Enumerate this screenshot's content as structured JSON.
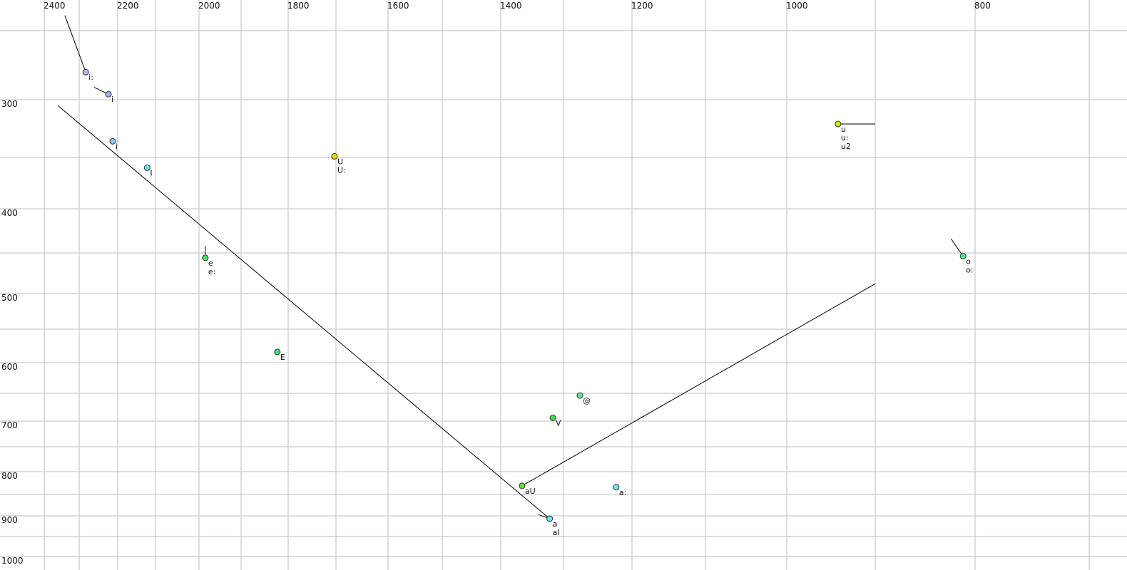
{
  "chart_data": {
    "type": "scatter",
    "title": "",
    "xlabel": "",
    "ylabel": "",
    "x_axis": {
      "reversed": true,
      "scale": "nonlinear",
      "range": [
        2400,
        700
      ],
      "tick_labels": [
        2400,
        2200,
        2000,
        1800,
        1600,
        1400,
        1200,
        1000,
        800
      ],
      "grid_values": [
        2400,
        2300,
        2200,
        2100,
        2000,
        1900,
        1800,
        1700,
        1600,
        1500,
        1400,
        1300,
        1200,
        1100,
        1000,
        900,
        800,
        700
      ],
      "position": "top"
    },
    "y_axis": {
      "reversed": false,
      "scale": "nonlinear",
      "range": [
        250,
        1000
      ],
      "tick_labels": [
        300,
        400,
        500,
        600,
        700,
        800,
        900,
        1000
      ],
      "grid_values": [
        250,
        300,
        350,
        400,
        450,
        500,
        550,
        600,
        650,
        700,
        750,
        800,
        850,
        900,
        950,
        1000
      ],
      "position": "left"
    },
    "grid": true,
    "points": [
      {
        "labels": [
          "i:"
        ],
        "x": 2283,
        "y": 280,
        "color": "#a8bef2"
      },
      {
        "labels": [
          "i"
        ],
        "x": 2224,
        "y": 296,
        "color": "#a0b2f0"
      },
      {
        "labels": [
          "i"
        ],
        "x": 2213,
        "y": 336,
        "color": "#92c8f2"
      },
      {
        "labels": [
          "I"
        ],
        "x": 2122,
        "y": 360,
        "color": "#60ecd8"
      },
      {
        "labels": [
          "U",
          "U:"
        ],
        "x": 1703,
        "y": 349,
        "color": "#f2d400"
      },
      {
        "labels": [
          "u",
          "u:",
          "u2"
        ],
        "x": 942,
        "y": 321,
        "color": "#c4f000"
      },
      {
        "labels": [
          "o",
          "o:"
        ],
        "x": 812,
        "y": 454,
        "color": "#50e890"
      },
      {
        "labels": [
          "e",
          "e:"
        ],
        "x": 1985,
        "y": 456,
        "color": "#40e060"
      },
      {
        "labels": [
          "E"
        ],
        "x": 1823,
        "y": 584,
        "color": "#40e070"
      },
      {
        "labels": [
          "@"
        ],
        "x": 1276,
        "y": 654,
        "color": "#60e8a0"
      },
      {
        "labels": [
          "V"
        ],
        "x": 1317,
        "y": 694,
        "color": "#40e040"
      },
      {
        "labels": [
          "aU"
        ],
        "x": 1366,
        "y": 831,
        "color": "#64e030"
      },
      {
        "labels": [
          "a:"
        ],
        "x": 1223,
        "y": 834,
        "color": "#70e4f0"
      },
      {
        "labels": [
          "a",
          "aI"
        ],
        "x": 1322,
        "y": 907,
        "color": "#60e8f0"
      }
    ],
    "trajectories": [
      {
        "from": [
          2341,
          239
        ],
        "to": [
          2283,
          280
        ]
      },
      {
        "from": [
          2261,
          291
        ],
        "to": [
          2224,
          296
        ]
      },
      {
        "from": [
          2361,
          305
        ],
        "to": [
          1322,
          907
        ]
      },
      {
        "from": [
          942,
          321
        ],
        "to": [
          900,
          321
        ]
      },
      {
        "from": [
          824,
          434
        ],
        "to": [
          812,
          454
        ]
      },
      {
        "from": [
          1985,
          442
        ],
        "to": [
          1985,
          456
        ]
      },
      {
        "from": [
          1366,
          831
        ],
        "to": [
          900,
          488
        ]
      },
      {
        "from": [
          1340,
          897
        ],
        "to": [
          1322,
          907
        ]
      }
    ]
  }
}
